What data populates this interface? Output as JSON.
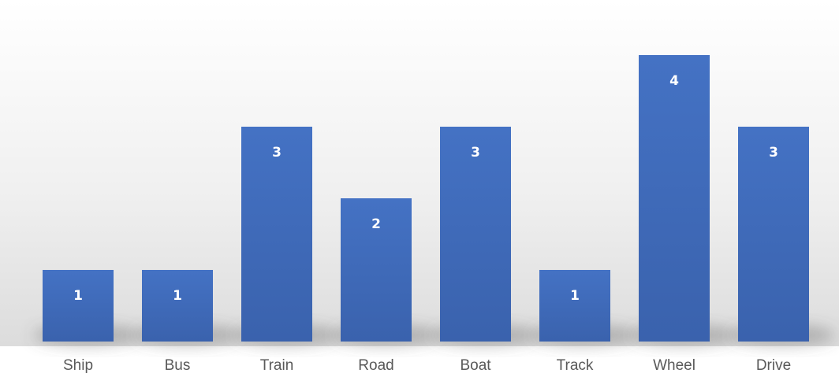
{
  "chart_data": {
    "type": "bar",
    "categories": [
      "Ship",
      "Bus",
      "Train",
      "Road",
      "Boat",
      "Track",
      "Wheel",
      "Drive"
    ],
    "values": [
      1,
      1,
      3,
      2,
      3,
      1,
      4,
      3
    ],
    "title": "",
    "xlabel": "",
    "ylabel": "",
    "ylim": [
      0,
      4
    ],
    "grid": false,
    "legend": "none",
    "data_labels": true,
    "colors": {
      "bar_top": "#4472c4",
      "bar_bottom": "#3a62ad",
      "label": "#ffffff",
      "axis_text": "#595959",
      "background_top": "#ffffff",
      "background_bottom": "#dcdcdc"
    }
  }
}
